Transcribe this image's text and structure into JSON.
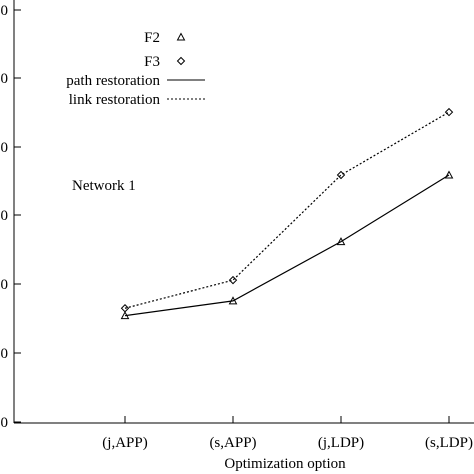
{
  "chart_data": {
    "type": "line",
    "categories": [
      "(j,APP)",
      "(s,APP)",
      "(j,LDP)",
      "(s,LDP)"
    ],
    "xlabel": "Optimization option",
    "ylabel": "",
    "ylim": [
      0,
      6
    ],
    "yticks_visible": [
      "0",
      "0",
      "0",
      "0",
      "0",
      "0",
      "0"
    ],
    "annotation": "Network 1",
    "grid": false,
    "legend_position": "top-right",
    "legend": [
      {
        "label": "F2",
        "marker": "triangle"
      },
      {
        "label": "F3",
        "marker": "diamond"
      },
      {
        "label": "path restoration",
        "line": "solid"
      },
      {
        "label": "link restoration",
        "line": "dotted"
      }
    ],
    "series": [
      {
        "name": "F2",
        "style": "solid",
        "marker": "triangle",
        "values": [
          1.45,
          1.65,
          2.45,
          3.35
        ]
      },
      {
        "name": "F3",
        "style": "dotted",
        "marker": "diamond",
        "values": [
          1.55,
          1.93,
          3.35,
          4.2
        ]
      }
    ]
  }
}
